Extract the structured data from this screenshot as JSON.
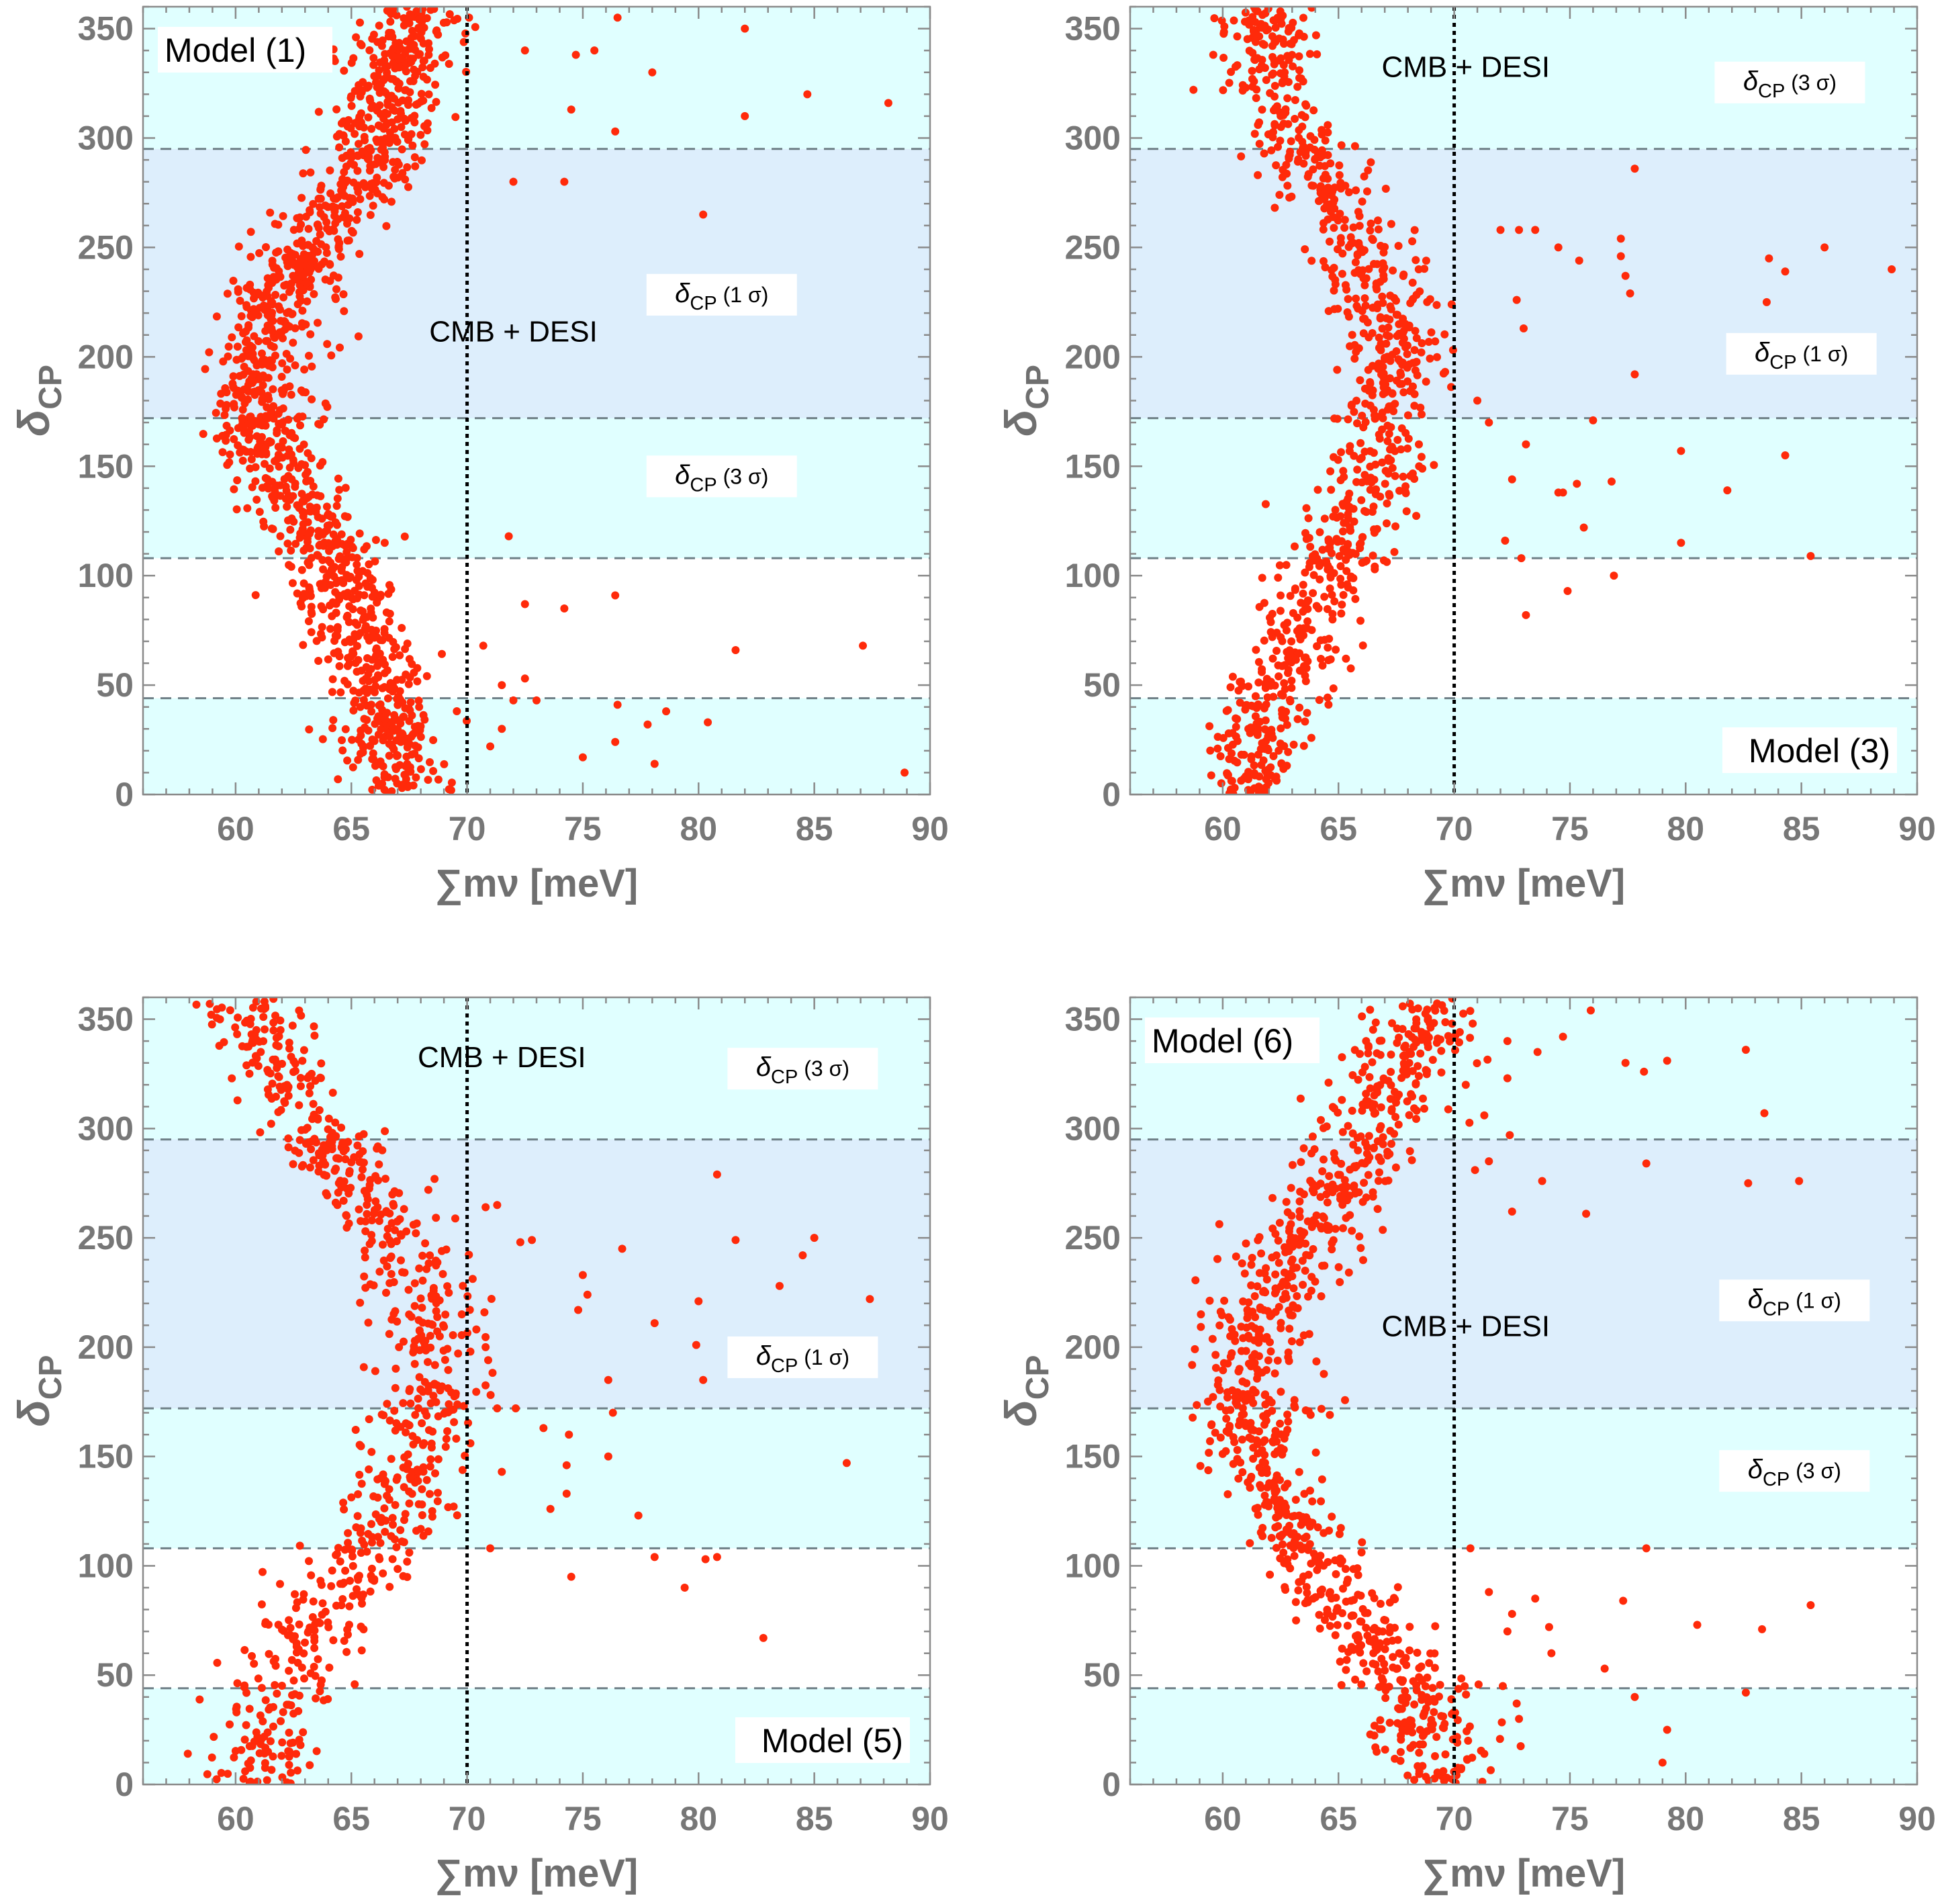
{
  "figure": {
    "colors": {
      "band_3sigma": "#e0ffff",
      "band_1sigma": "#ddeefc",
      "points": "#ff2a0a",
      "frame": "#8a8a8a",
      "dashed_lines": "#6e7f86",
      "vertical_line": "#000000"
    }
  },
  "chart_data": [
    {
      "type": "scatter",
      "model_label": "Model (1)",
      "model_label_corner": "top-left",
      "xlabel": "∑mν [meV]",
      "ylabel": "δCP",
      "xlim": [
        56,
        90
      ],
      "ylim": [
        0,
        360
      ],
      "xticks": [
        60,
        65,
        70,
        75,
        80,
        85,
        90
      ],
      "yticks": [
        0,
        50,
        100,
        150,
        200,
        250,
        300,
        350
      ],
      "bands": [
        {
          "name": "3 sigma",
          "from": 0,
          "to": 44
        },
        {
          "name": "3 sigma",
          "from": 108,
          "to": 360
        },
        {
          "name": "1 sigma",
          "from": 172,
          "to": 295
        }
      ],
      "dashed_lines_y": [
        44,
        108,
        172,
        295
      ],
      "bound_line_x": 70,
      "annotations": {
        "bound_label": "CMB + DESI",
        "sigma1_label": "δCP (1 σ)",
        "sigma3_label": "δCP (3 σ)"
      },
      "annotation_positions": {
        "bound": [
          72,
          207
        ],
        "sigma1": [
          81,
          225
        ],
        "sigma3": [
          81,
          142
        ]
      },
      "curve": [
        [
          67.5,
          0
        ],
        [
          66.8,
          20
        ],
        [
          66.3,
          40
        ],
        [
          65.5,
          70
        ],
        [
          64.5,
          100
        ],
        [
          63.5,
          120
        ],
        [
          62.2,
          140
        ],
        [
          61.2,
          165
        ],
        [
          61.0,
          190
        ],
        [
          61.5,
          215
        ],
        [
          62.5,
          240
        ],
        [
          64.0,
          262
        ],
        [
          65.5,
          285
        ],
        [
          66.5,
          310
        ],
        [
          67.0,
          335
        ],
        [
          68.0,
          360
        ]
      ],
      "scatter_main": {
        "count": 1400,
        "spread_x": 1.4
      },
      "scatter_outliers": [
        [
          72.5,
          340
        ],
        [
          74.7,
          338
        ],
        [
          75.5,
          340
        ],
        [
          76.5,
          355
        ],
        [
          78.0,
          330
        ],
        [
          82.0,
          350
        ],
        [
          84.7,
          320
        ],
        [
          88.2,
          316
        ],
        [
          82.0,
          310
        ],
        [
          76.4,
          303
        ],
        [
          74.5,
          313
        ],
        [
          72.0,
          280
        ],
        [
          74.2,
          280
        ],
        [
          80.2,
          265
        ],
        [
          71.8,
          118
        ],
        [
          72.5,
          87
        ],
        [
          74.2,
          85
        ],
        [
          76.4,
          91
        ],
        [
          81.6,
          66
        ],
        [
          87.1,
          68
        ],
        [
          72.5,
          53
        ],
        [
          71.5,
          50
        ],
        [
          72.0,
          43
        ],
        [
          73.0,
          43
        ],
        [
          76.5,
          41
        ],
        [
          78.6,
          38
        ],
        [
          77.8,
          32
        ],
        [
          80.4,
          33
        ],
        [
          75.0,
          17
        ],
        [
          76.4,
          24
        ],
        [
          78.1,
          14
        ],
        [
          88.9,
          10
        ],
        [
          71.5,
          30
        ],
        [
          71.0,
          22
        ],
        [
          70.7,
          68
        ]
      ]
    },
    {
      "type": "scatter",
      "model_label": "Model (3)",
      "model_label_corner": "bottom-right",
      "xlabel": "∑mν [meV]",
      "ylabel": "δCP",
      "xlim": [
        56,
        90
      ],
      "ylim": [
        0,
        360
      ],
      "xticks": [
        60,
        65,
        70,
        75,
        80,
        85,
        90
      ],
      "yticks": [
        0,
        50,
        100,
        150,
        200,
        250,
        300,
        350
      ],
      "bands": [
        {
          "name": "3 sigma",
          "from": 0,
          "to": 44
        },
        {
          "name": "3 sigma",
          "from": 108,
          "to": 360
        },
        {
          "name": "1 sigma",
          "from": 172,
          "to": 295
        }
      ],
      "dashed_lines_y": [
        44,
        108,
        172,
        295
      ],
      "bound_line_x": 70,
      "annotations": {
        "bound_label": "CMB + DESI",
        "sigma1_label": "δCP (1 σ)",
        "sigma3_label": "δCP (3 σ)"
      },
      "annotation_positions": {
        "bound": [
          70.5,
          328
        ],
        "sigma1": [
          85,
          198
        ],
        "sigma3": [
          84.5,
          322
        ]
      },
      "curve": [
        [
          61.2,
          0
        ],
        [
          61.4,
          20
        ],
        [
          61.8,
          40
        ],
        [
          62.7,
          60
        ],
        [
          63.5,
          80
        ],
        [
          64.5,
          100
        ],
        [
          65.7,
          120
        ],
        [
          66.5,
          145
        ],
        [
          67.2,
          170
        ],
        [
          67.5,
          200
        ],
        [
          67.0,
          225
        ],
        [
          66.0,
          250
        ],
        [
          64.7,
          270
        ],
        [
          63.5,
          290
        ],
        [
          62.5,
          315
        ],
        [
          62.0,
          340
        ],
        [
          62.0,
          360
        ]
      ],
      "scatter_main": {
        "count": 950,
        "spread_x": 1.35
      },
      "scatter_outliers": [
        [
          72.0,
          258
        ],
        [
          72.8,
          258
        ],
        [
          73.5,
          258
        ],
        [
          74.5,
          250
        ],
        [
          75.4,
          244
        ],
        [
          77.2,
          254
        ],
        [
          77.2,
          246
        ],
        [
          77.4,
          237
        ],
        [
          77.6,
          229
        ],
        [
          83.6,
          245
        ],
        [
          84.3,
          239
        ],
        [
          86.0,
          250
        ],
        [
          88.9,
          240
        ],
        [
          83.5,
          225
        ],
        [
          77.8,
          286
        ],
        [
          72.7,
          226
        ],
        [
          73.0,
          213
        ],
        [
          77.8,
          192
        ],
        [
          73.1,
          160
        ],
        [
          76.0,
          171
        ],
        [
          79.8,
          157
        ],
        [
          84.3,
          155
        ],
        [
          74.5,
          138
        ],
        [
          76.8,
          143
        ],
        [
          81.8,
          139
        ],
        [
          75.3,
          142
        ],
        [
          72.5,
          144
        ],
        [
          72.9,
          108
        ],
        [
          72.2,
          116
        ],
        [
          74.9,
          93
        ],
        [
          73.1,
          82
        ],
        [
          76.9,
          100
        ],
        [
          79.8,
          115
        ],
        [
          85.4,
          109
        ],
        [
          75.6,
          122
        ],
        [
          74.7,
          138
        ],
        [
          71.0,
          180
        ],
        [
          71.5,
          170
        ]
      ]
    },
    {
      "type": "scatter",
      "model_label": "Model (5)",
      "model_label_corner": "bottom-right",
      "xlabel": "∑mν [meV]",
      "ylabel": "δCP",
      "xlim": [
        56,
        90
      ],
      "ylim": [
        0,
        360
      ],
      "xticks": [
        60,
        65,
        70,
        75,
        80,
        85,
        90
      ],
      "yticks": [
        0,
        50,
        100,
        150,
        200,
        250,
        300,
        350
      ],
      "bands": [
        {
          "name": "3 sigma",
          "from": 0,
          "to": 44
        },
        {
          "name": "3 sigma",
          "from": 108,
          "to": 360
        },
        {
          "name": "1 sigma",
          "from": 172,
          "to": 295
        }
      ],
      "dashed_lines_y": [
        44,
        108,
        172,
        295
      ],
      "bound_line_x": 70,
      "annotations": {
        "bound_label": "CMB + DESI",
        "sigma1_label": "δCP (1 σ)",
        "sigma3_label": "δCP (3 σ)"
      },
      "annotation_positions": {
        "bound": [
          71.5,
          328
        ],
        "sigma1": [
          84.5,
          192
        ],
        "sigma3": [
          84.5,
          324
        ]
      },
      "curve": [
        [
          61.2,
          0
        ],
        [
          61.4,
          20
        ],
        [
          61.8,
          40
        ],
        [
          62.6,
          60
        ],
        [
          63.8,
          80
        ],
        [
          65.3,
          100
        ],
        [
          66.8,
          120
        ],
        [
          68.0,
          150
        ],
        [
          68.5,
          180
        ],
        [
          68.3,
          210
        ],
        [
          67.5,
          240
        ],
        [
          66.0,
          265
        ],
        [
          64.3,
          285
        ],
        [
          63.0,
          305
        ],
        [
          62.0,
          325
        ],
        [
          61.0,
          345
        ],
        [
          60.8,
          360
        ]
      ],
      "scatter_main": {
        "count": 780,
        "spread_x": 1.45
      },
      "scatter_outliers": [
        [
          70.8,
          264
        ],
        [
          71.3,
          265
        ],
        [
          72.3,
          248
        ],
        [
          72.8,
          249
        ],
        [
          75.0,
          233
        ],
        [
          75.2,
          224
        ],
        [
          74.8,
          217
        ],
        [
          76.7,
          245
        ],
        [
          78.1,
          211
        ],
        [
          80.0,
          221
        ],
        [
          80.8,
          279
        ],
        [
          81.6,
          249
        ],
        [
          84.5,
          242
        ],
        [
          85.0,
          250
        ],
        [
          83.5,
          228
        ],
        [
          87.4,
          222
        ],
        [
          79.9,
          201
        ],
        [
          76.1,
          185
        ],
        [
          80.2,
          185
        ],
        [
          71.3,
          172
        ],
        [
          72.1,
          172
        ],
        [
          73.3,
          163
        ],
        [
          74.4,
          160
        ],
        [
          76.3,
          170
        ],
        [
          74.3,
          146
        ],
        [
          76.1,
          150
        ],
        [
          71.5,
          143
        ],
        [
          74.3,
          133
        ],
        [
          73.6,
          126
        ],
        [
          77.4,
          123
        ],
        [
          86.4,
          147
        ],
        [
          71.0,
          108
        ],
        [
          74.5,
          95
        ],
        [
          78.1,
          104
        ],
        [
          79.4,
          90
        ],
        [
          80.3,
          103
        ],
        [
          80.8,
          104
        ],
        [
          82.8,
          67
        ],
        [
          70.8,
          200
        ]
      ]
    },
    {
      "type": "scatter",
      "model_label": "Model (6)",
      "model_label_corner": "top-left",
      "xlabel": "∑mν [meV]",
      "ylabel": "δCP",
      "xlim": [
        56,
        90
      ],
      "ylim": [
        0,
        360
      ],
      "xticks": [
        60,
        65,
        70,
        75,
        80,
        85,
        90
      ],
      "yticks": [
        0,
        50,
        100,
        150,
        200,
        250,
        300,
        350
      ],
      "bands": [
        {
          "name": "3 sigma",
          "from": 0,
          "to": 44
        },
        {
          "name": "3 sigma",
          "from": 108,
          "to": 360
        },
        {
          "name": "1 sigma",
          "from": 172,
          "to": 295
        }
      ],
      "dashed_lines_y": [
        44,
        108,
        172,
        295
      ],
      "bound_line_x": 70,
      "annotations": {
        "bound_label": "CMB + DESI",
        "sigma1_label": "δCP (1 σ)",
        "sigma3_label": "δCP (3 σ)"
      },
      "annotation_positions": {
        "bound": [
          70.5,
          205
        ],
        "sigma1": [
          84.7,
          218
        ],
        "sigma3": [
          84.7,
          140
        ]
      },
      "curve": [
        [
          69.5,
          0
        ],
        [
          68.8,
          20
        ],
        [
          68.2,
          40
        ],
        [
          67.0,
          60
        ],
        [
          65.5,
          80
        ],
        [
          64.0,
          100
        ],
        [
          62.7,
          120
        ],
        [
          61.7,
          140
        ],
        [
          61.2,
          165
        ],
        [
          61.2,
          190
        ],
        [
          61.8,
          215
        ],
        [
          62.8,
          240
        ],
        [
          64.3,
          262
        ],
        [
          65.8,
          285
        ],
        [
          67.0,
          305
        ],
        [
          68.0,
          330
        ],
        [
          68.8,
          355
        ]
      ],
      "scatter_main": {
        "count": 1000,
        "spread_x": 1.45
      },
      "scatter_outliers": [
        [
          70.8,
          348
        ],
        [
          72.3,
          340
        ],
        [
          73.6,
          335
        ],
        [
          74.7,
          342
        ],
        [
          75.9,
          354
        ],
        [
          77.4,
          330
        ],
        [
          78.2,
          326
        ],
        [
          79.2,
          331
        ],
        [
          82.6,
          336
        ],
        [
          83.4,
          307
        ],
        [
          72.3,
          323
        ],
        [
          70.5,
          320
        ],
        [
          71.3,
          306
        ],
        [
          72.4,
          297
        ],
        [
          71.5,
          285
        ],
        [
          70.9,
          281
        ],
        [
          73.8,
          276
        ],
        [
          72.5,
          262
        ],
        [
          75.7,
          261
        ],
        [
          78.3,
          284
        ],
        [
          82.7,
          275
        ],
        [
          84.9,
          276
        ],
        [
          70.7,
          108
        ],
        [
          71.5,
          88
        ],
        [
          72.5,
          78
        ],
        [
          73.5,
          85
        ],
        [
          72.3,
          70
        ],
        [
          74.1,
          72
        ],
        [
          74.2,
          60
        ],
        [
          77.3,
          84
        ],
        [
          78.3,
          108
        ],
        [
          80.5,
          73
        ],
        [
          83.3,
          71
        ],
        [
          85.4,
          82
        ],
        [
          72.1,
          45
        ],
        [
          72.7,
          37
        ],
        [
          72.8,
          30
        ],
        [
          76.5,
          53
        ],
        [
          77.8,
          40
        ],
        [
          79.2,
          25
        ],
        [
          82.6,
          42
        ],
        [
          79.0,
          10
        ],
        [
          70.3,
          7
        ],
        [
          70.6,
          20
        ],
        [
          71.3,
          14
        ]
      ]
    }
  ]
}
